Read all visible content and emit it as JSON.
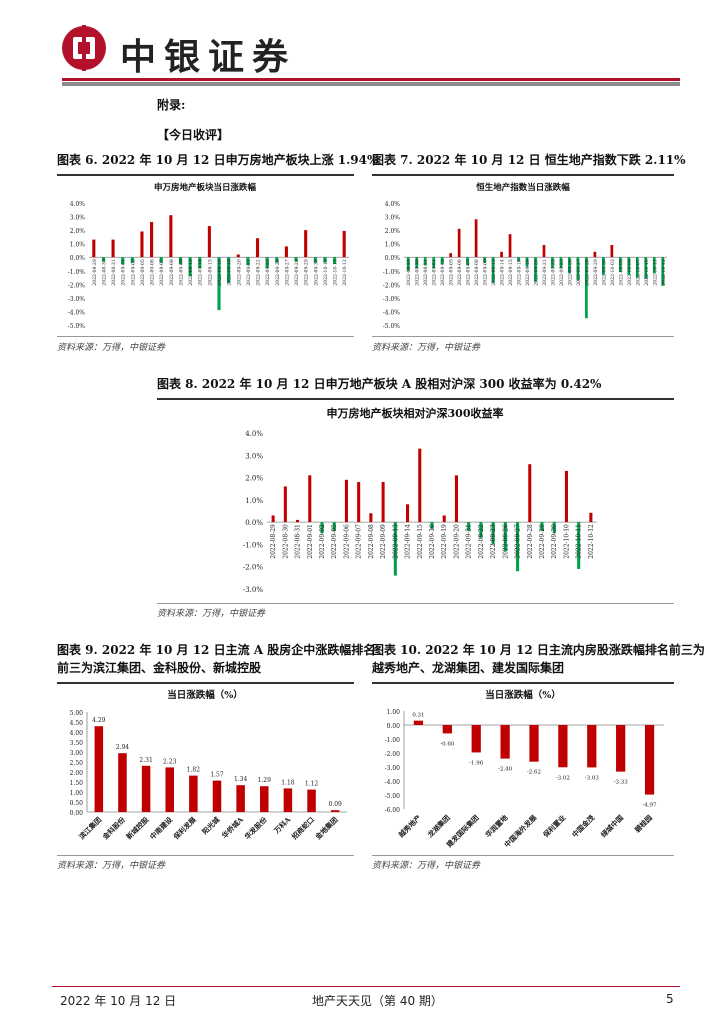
{
  "header": {
    "brand": "中银证券"
  },
  "appendix_label": "附录:",
  "section_label": "【今日收评】",
  "figures": {
    "fig6": {
      "title": "图表 6. 2022 年 10 月 12 日申万房地产板块上涨 1.94%",
      "source": "资料来源：万得，中银证券"
    },
    "fig7": {
      "title": "图表 7. 2022 年 10 月 12 日 恒生地产指数下跌 2.11%",
      "source": "资料来源：万得，中银证券"
    },
    "fig8": {
      "title": "图表 8. 2022 年 10 月 12 日申万地产板块 A 股相对沪深 300 收益率为 0.42%",
      "source": "资料来源：万得，中银证券"
    },
    "fig9": {
      "title_line1": "图表 9. 2022 年 10 月 12 日主流 A 股房企中涨跌幅排名",
      "title_line2": "前三为滨江集团、金科股份、新城控股",
      "source": "资料来源：万得，中银证券"
    },
    "fig10": {
      "title_line1": "图表 10. 2022 年 10 月 12 日主流内房股涨跌幅排名前三为",
      "title_line2": "越秀地产、龙湖集团、建发国际集团",
      "source": "资料来源：万得，中银证券"
    }
  },
  "chart_data": [
    {
      "id": "fig6",
      "type": "bar",
      "title": "申万房地产板块当日涨跌幅",
      "ylim": [
        -5,
        4
      ],
      "yticks": [
        "4.0%",
        "3.0%",
        "2.0%",
        "1.0%",
        "0.0%",
        "-1.0%",
        "-2.0%",
        "-3.0%",
        "-4.0%",
        "-5.0%"
      ],
      "categories": [
        "2022-08-29",
        "2022-08-30",
        "2022-08-31",
        "2022-09-01",
        "2022-09-02",
        "2022-09-05",
        "2022-09-06",
        "2022-09-07",
        "2022-09-08",
        "2022-09-09",
        "2022-09-13",
        "2022-09-14",
        "2022-09-15",
        "2022-09-16",
        "2022-09-19",
        "2022-09-20",
        "2022-09-21",
        "2022-09-22",
        "2022-09-23",
        "2022-09-26",
        "2022-09-27",
        "2022-09-28",
        "2022-09-29",
        "2022-09-30",
        "2022-10-10",
        "2022-10-11",
        "2022-10-12"
      ],
      "values": [
        1.3,
        -0.3,
        1.3,
        -0.5,
        -0.4,
        1.9,
        2.6,
        -0.4,
        3.1,
        -0.5,
        -1.4,
        -0.8,
        2.3,
        -3.9,
        -1.9,
        0.2,
        -0.6,
        1.4,
        -0.8,
        -0.4,
        0.8,
        -0.3,
        2.0,
        -0.4,
        -0.4,
        -0.5,
        1.94
      ]
    },
    {
      "id": "fig7",
      "type": "bar",
      "title": "恒生地产指数当日涨跌幅",
      "ylim": [
        -5,
        4
      ],
      "yticks": [
        "4.0%",
        "3.0%",
        "2.0%",
        "1.0%",
        "0.0%",
        "-1.0%",
        "-2.0%",
        "-3.0%",
        "-4.0%",
        "-5.0%"
      ],
      "categories": [
        "2022-08-29",
        "2022-08-30",
        "2022-08-31",
        "2022-09-01",
        "2022-09-02",
        "2022-09-05",
        "2022-09-06",
        "2022-09-07",
        "2022-09-08",
        "2022-09-09",
        "2022-09-13",
        "2022-09-14",
        "2022-09-15",
        "2022-09-16",
        "2022-09-19",
        "2022-09-20",
        "2022-09-21",
        "2022-09-22",
        "2022-09-23",
        "2022-09-26",
        "2022-09-27",
        "2022-09-28",
        "2022-09-29",
        "2022-09-30",
        "2022-10-03",
        "2022-10-05",
        "2022-10-06",
        "2022-10-07",
        "2022-10-10",
        "2022-10-11",
        "2022-10-12"
      ],
      "values": [
        -1.0,
        -0.8,
        -0.6,
        -0.8,
        -0.5,
        0.3,
        2.1,
        -0.6,
        2.8,
        -0.4,
        -1.9,
        0.4,
        1.7,
        -0.3,
        -0.7,
        -1.8,
        0.9,
        -0.8,
        -0.8,
        -1.2,
        -1.7,
        -4.5,
        0.4,
        -1.3,
        0.9,
        -1.1,
        -1.3,
        -1.5,
        -1.6,
        -1.2,
        -2.11
      ]
    },
    {
      "id": "fig8",
      "type": "bar",
      "title": "申万房地产板块相对沪深300收益率",
      "ylim": [
        -3,
        4
      ],
      "yticks": [
        "4.0%",
        "3.0%",
        "2.0%",
        "1.0%",
        "0.0%",
        "-1.0%",
        "-2.0%",
        "-3.0%"
      ],
      "categories": [
        "2022-08-29",
        "2022-08-30",
        "2022-08-31",
        "2022-09-01",
        "2022-09-02",
        "2022-09-05",
        "2022-09-06",
        "2022-09-07",
        "2022-09-08",
        "2022-09-09",
        "2022-09-13",
        "2022-09-14",
        "2022-09-15",
        "2022-09-16",
        "2022-09-19",
        "2022-09-20",
        "2022-09-21",
        "2022-09-22",
        "2022-09-23",
        "2022-09-26",
        "2022-09-27",
        "2022-09-28",
        "2022-09-29",
        "2022-09-30",
        "2022-10-10",
        "2022-10-11",
        "2022-10-12"
      ],
      "values": [
        0.3,
        1.6,
        0.1,
        2.1,
        -0.5,
        -0.4,
        1.9,
        1.8,
        0.4,
        1.8,
        -2.4,
        0.8,
        3.3,
        -0.3,
        0.3,
        2.1,
        -0.4,
        -0.7,
        -1.0,
        -1.3,
        -2.2,
        2.6,
        -0.4,
        -0.5,
        2.3,
        -2.1,
        0.42
      ]
    },
    {
      "id": "fig9",
      "type": "bar",
      "title": "当日涨跌幅（%）",
      "ylim": [
        0,
        5
      ],
      "yticks": [
        "5.00",
        "4.50",
        "4.00",
        "3.50",
        "3.00",
        "2.50",
        "2.00",
        "1.50",
        "1.00",
        "0.50",
        "0.00"
      ],
      "categories": [
        "滨江集团",
        "金科股份",
        "新城控股",
        "中南建设",
        "保利发展",
        "阳光城",
        "华侨城A",
        "华发股份",
        "万科A",
        "招商蛇口",
        "金地集团"
      ],
      "labels": [
        "4.29",
        "2.94",
        "2.31",
        "2.23",
        "1.82",
        "1.57",
        "1.34",
        "1.29",
        "1.18",
        "1.12",
        "0.09"
      ],
      "values": [
        4.29,
        2.94,
        2.31,
        2.23,
        1.82,
        1.57,
        1.34,
        1.29,
        1.18,
        1.12,
        0.09
      ]
    },
    {
      "id": "fig10",
      "type": "bar",
      "title": "当日涨跌幅（%）",
      "ylim": [
        -6,
        1
      ],
      "yticks": [
        "1.00",
        "0.00",
        "-1.00",
        "-2.00",
        "-3.00",
        "-4.00",
        "-5.00",
        "-6.00"
      ],
      "categories": [
        "越秀地产",
        "龙湖集团",
        "建发国际集团",
        "华润置地",
        "中国海外发展",
        "保利置业",
        "中国金茂",
        "绿城中国",
        "碧桂园"
      ],
      "labels": [
        "0.31",
        "-0.60",
        "-1.96",
        "-2.40",
        "-2.62",
        "-3.02",
        "-3.03",
        "-3.33",
        "-4.97"
      ],
      "values": [
        0.31,
        -0.6,
        -1.96,
        -2.4,
        -2.62,
        -3.02,
        -3.03,
        -3.33,
        -4.97
      ]
    }
  ],
  "footer": {
    "date": "2022 年 10 月 12 日",
    "report": "地产天天见（第 40 期）",
    "page": "5"
  },
  "colors": {
    "positive": "#c00000",
    "negative": "#00a14b",
    "brand": "#b3102b"
  }
}
